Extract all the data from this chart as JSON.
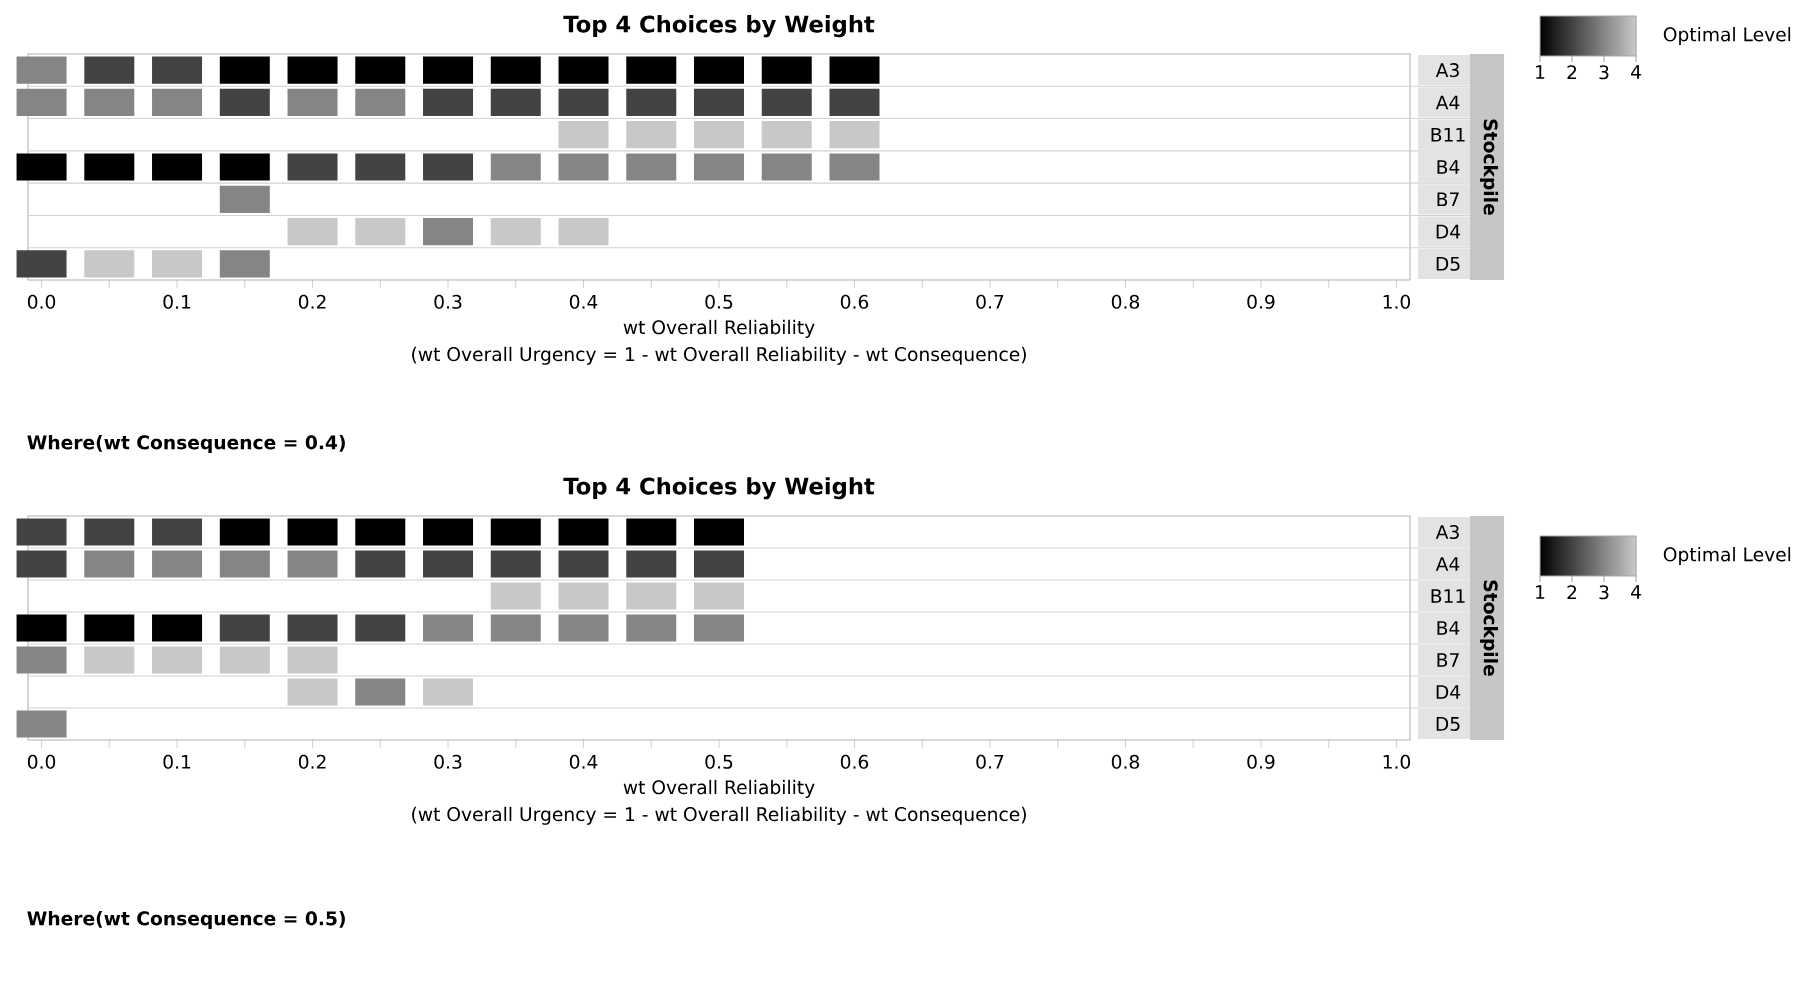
{
  "chart_data": [
    {
      "type": "heatmap",
      "title": "Top 4 Choices by Weight",
      "xlabel": "wt Overall Reliability",
      "ylabel": "Stockpile",
      "clabel": "Optimal Level",
      "annotations": [
        "(wt Overall Urgency = 1 - wt Overall Reliability - wt Consequence)",
        "Where(wt Consequence = 0.4)"
      ],
      "x": [
        0,
        0.05,
        0.1,
        0.15,
        0.2,
        0.25,
        0.3,
        0.35,
        0.4,
        0.45,
        0.5,
        0.55,
        0.6
      ],
      "y_categories": [
        "A3",
        "A4",
        "B11",
        "B4",
        "B7",
        "D4",
        "D5"
      ],
      "cells": [
        [
          3,
          2,
          2,
          1,
          1,
          1,
          1,
          1,
          1,
          1,
          1,
          1,
          1
        ],
        [
          3,
          3,
          3,
          2,
          3,
          3,
          2,
          2,
          2,
          2,
          2,
          2,
          2
        ],
        [
          null,
          null,
          null,
          null,
          null,
          null,
          null,
          null,
          4,
          4,
          4,
          4,
          4
        ],
        [
          1,
          1,
          1,
          1,
          2,
          2,
          2,
          3,
          3,
          3,
          3,
          3,
          3
        ],
        [
          null,
          null,
          null,
          3,
          null,
          null,
          null,
          null,
          null,
          null,
          null,
          null,
          null
        ],
        [
          null,
          null,
          null,
          null,
          4,
          4,
          3,
          4,
          4,
          null,
          null,
          null,
          null
        ],
        [
          2,
          4,
          4,
          3,
          null,
          null,
          null,
          null,
          null,
          null,
          null,
          null,
          null
        ]
      ],
      "clim": [
        1,
        4
      ],
      "cticks": [
        1,
        2,
        3,
        4
      ],
      "xlim": [
        -0.01,
        1.01
      ],
      "xticks": [
        {
          "value": 0,
          "label": "0.0"
        },
        {
          "value": 0.05,
          "label": null
        },
        {
          "value": 0.1,
          "label": "0.1"
        },
        {
          "value": 0.15,
          "label": null
        },
        {
          "value": 0.2,
          "label": "0.2"
        },
        {
          "value": 0.25,
          "label": null
        },
        {
          "value": 0.3,
          "label": "0.3"
        },
        {
          "value": 0.35,
          "label": null
        },
        {
          "value": 0.4,
          "label": "0.4"
        },
        {
          "value": 0.45,
          "label": null
        },
        {
          "value": 0.5,
          "label": "0.5"
        },
        {
          "value": 0.55,
          "label": null
        },
        {
          "value": 0.6,
          "label": "0.6"
        },
        {
          "value": 0.65,
          "label": null
        },
        {
          "value": 0.7,
          "label": "0.7"
        },
        {
          "value": 0.75,
          "label": null
        },
        {
          "value": 0.8,
          "label": "0.8"
        },
        {
          "value": 0.85,
          "label": null
        },
        {
          "value": 0.9,
          "label": "0.9"
        },
        {
          "value": 0.95,
          "label": null
        },
        {
          "value": 1,
          "label": "1.0"
        }
      ]
    },
    {
      "type": "heatmap",
      "title": "Top 4 Choices by Weight",
      "xlabel": "wt Overall Reliability",
      "ylabel": "Stockpile",
      "clabel": "Optimal Level",
      "annotations": [
        "(wt Overall Urgency = 1 - wt Overall Reliability - wt Consequence)",
        "Where(wt Consequence = 0.5)"
      ],
      "x": [
        0,
        0.05,
        0.1,
        0.15,
        0.2,
        0.25,
        0.3,
        0.35,
        0.4,
        0.45,
        0.5
      ],
      "y_categories": [
        "A3",
        "A4",
        "B11",
        "B4",
        "B7",
        "D4",
        "D5"
      ],
      "cells": [
        [
          2,
          2,
          2,
          1,
          1,
          1,
          1,
          1,
          1,
          1,
          1
        ],
        [
          2,
          3,
          3,
          3,
          3,
          2,
          2,
          2,
          2,
          2,
          2
        ],
        [
          null,
          null,
          null,
          null,
          null,
          null,
          null,
          4,
          4,
          4,
          4
        ],
        [
          1,
          1,
          1,
          2,
          2,
          2,
          3,
          3,
          3,
          3,
          3
        ],
        [
          3,
          4,
          4,
          4,
          4,
          null,
          null,
          null,
          null,
          null,
          null
        ],
        [
          null,
          null,
          null,
          null,
          4,
          3,
          4,
          null,
          null,
          null,
          null
        ],
        [
          3,
          null,
          null,
          null,
          null,
          null,
          null,
          null,
          null,
          null,
          null
        ]
      ],
      "clim": [
        1,
        4
      ],
      "cticks": [
        1,
        2,
        3,
        4
      ],
      "xlim": [
        -0.01,
        1.01
      ],
      "xticks": [
        {
          "value": 0,
          "label": "0.0"
        },
        {
          "value": 0.05,
          "label": null
        },
        {
          "value": 0.1,
          "label": "0.1"
        },
        {
          "value": 0.15,
          "label": null
        },
        {
          "value": 0.2,
          "label": "0.2"
        },
        {
          "value": 0.25,
          "label": null
        },
        {
          "value": 0.3,
          "label": "0.3"
        },
        {
          "value": 0.35,
          "label": null
        },
        {
          "value": 0.4,
          "label": "0.4"
        },
        {
          "value": 0.45,
          "label": null
        },
        {
          "value": 0.5,
          "label": "0.5"
        },
        {
          "value": 0.55,
          "label": null
        },
        {
          "value": 0.6,
          "label": "0.6"
        },
        {
          "value": 0.65,
          "label": null
        },
        {
          "value": 0.7,
          "label": "0.7"
        },
        {
          "value": 0.75,
          "label": null
        },
        {
          "value": 0.8,
          "label": "0.8"
        },
        {
          "value": 0.85,
          "label": null
        },
        {
          "value": 0.9,
          "label": "0.9"
        },
        {
          "value": 0.95,
          "label": null
        },
        {
          "value": 1,
          "label": "1.0"
        }
      ]
    }
  ]
}
